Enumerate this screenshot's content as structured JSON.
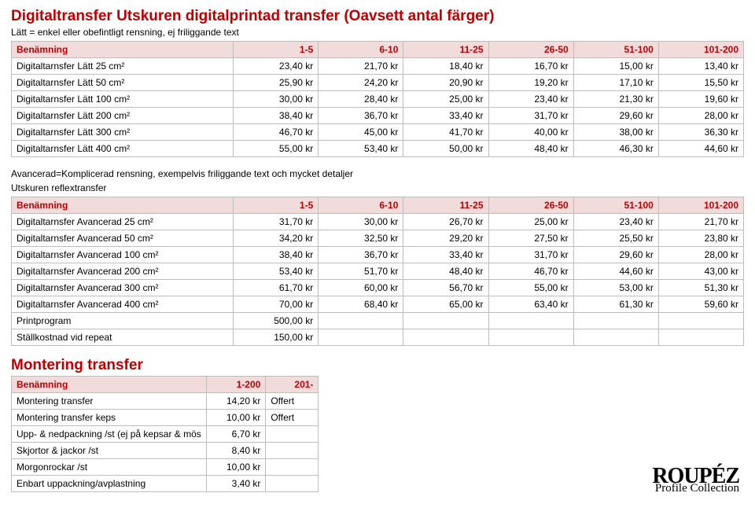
{
  "title": {
    "text": "Digitaltransfer Utskuren digitalprintad transfer (Oavsett antal färger)",
    "color": "#c00000",
    "fontsize": 19
  },
  "subtitle1": "Lätt = enkel eller obefintligt rensning, ej friliggande text",
  "table1": {
    "header_bg": "#f2dcdb",
    "header_color": "#c00000",
    "columns": [
      "Benämning",
      "1-5",
      "6-10",
      "11-25",
      "26-50",
      "51-100",
      "101-200"
    ],
    "rows": [
      [
        "Digitaltarnsfer Lätt 25 cm²",
        "23,40 kr",
        "21,70 kr",
        "18,40 kr",
        "16,70 kr",
        "15,00 kr",
        "13,40 kr"
      ],
      [
        "Digitaltarnsfer Lätt 50 cm²",
        "25,90 kr",
        "24,20 kr",
        "20,90 kr",
        "19,20 kr",
        "17,10 kr",
        "15,50 kr"
      ],
      [
        "Digitaltarnsfer Lätt 100 cm²",
        "30,00 kr",
        "28,40 kr",
        "25,00 kr",
        "23,40 kr",
        "21,30 kr",
        "19,60 kr"
      ],
      [
        "Digitaltarnsfer Lätt 200 cm²",
        "38,40 kr",
        "36,70 kr",
        "33,40 kr",
        "31,70 kr",
        "29,60 kr",
        "28,00 kr"
      ],
      [
        "Digitaltarnsfer Lätt 300 cm²",
        "46,70 kr",
        "45,00 kr",
        "41,70 kr",
        "40,00 kr",
        "38,00 kr",
        "36,30 kr"
      ],
      [
        "Digitaltarnsfer Lätt 400 cm²",
        "55,00 kr",
        "53,40 kr",
        "50,00 kr",
        "48,40 kr",
        "46,30 kr",
        "44,60 kr"
      ]
    ]
  },
  "subtitle2a": "Avancerad=Komplicerad rensning, exempelvis friliggande text och mycket detaljer",
  "subtitle2b": "Utskuren reflextransfer",
  "table2": {
    "columns": [
      "Benämning",
      "1-5",
      "6-10",
      "11-25",
      "26-50",
      "51-100",
      "101-200"
    ],
    "rows": [
      [
        "Digitaltarnsfer Avancerad 25 cm²",
        "31,70 kr",
        "30,00 kr",
        "26,70 kr",
        "25,00 kr",
        "23,40 kr",
        "21,70 kr"
      ],
      [
        "Digitaltarnsfer Avancerad 50 cm²",
        "34,20 kr",
        "32,50 kr",
        "29,20 kr",
        "27,50 kr",
        "25,50 kr",
        "23,80 kr"
      ],
      [
        "Digitaltarnsfer Avancerad 100 cm²",
        "38,40 kr",
        "36,70 kr",
        "33,40 kr",
        "31,70 kr",
        "29,60 kr",
        "28,00 kr"
      ],
      [
        "Digitaltarnsfer Avancerad 200 cm²",
        "53,40 kr",
        "51,70 kr",
        "48,40 kr",
        "46,70 kr",
        "44,60 kr",
        "43,00 kr"
      ],
      [
        "Digitaltarnsfer Avancerad 300 cm²",
        "61,70 kr",
        "60,00 kr",
        "56,70 kr",
        "55,00 kr",
        "53,00 kr",
        "51,30 kr"
      ],
      [
        "Digitaltarnsfer Avancerad 400 cm²",
        "70,00 kr",
        "68,40 kr",
        "65,00 kr",
        "63,40 kr",
        "61,30 kr",
        "59,60 kr"
      ],
      [
        "Printprogram",
        "500,00 kr",
        "",
        "",
        "",
        "",
        ""
      ],
      [
        "Ställkostnad vid repeat",
        "150,00 kr",
        "",
        "",
        "",
        "",
        ""
      ]
    ]
  },
  "sectionTitle": {
    "text": "Montering transfer",
    "color": "#c00000",
    "fontsize": 19
  },
  "table3": {
    "columns": [
      "Benämning",
      "1-200",
      "201-"
    ],
    "rows": [
      [
        "Montering transfer",
        "14,20 kr",
        "Offert"
      ],
      [
        "Montering transfer keps",
        "10,00 kr",
        "Offert"
      ],
      [
        "Upp- & nedpackning /st (ej på kepsar & mös",
        "6,70 kr",
        ""
      ],
      [
        "Skjortor & jackor /st",
        "8,40 kr",
        ""
      ],
      [
        "Morgonrockar /st",
        "10,00 kr",
        ""
      ],
      [
        "Enbart uppackning/avplastning",
        "3,40 kr",
        ""
      ]
    ]
  },
  "logo": {
    "main": "ROUPÉZ",
    "sub": "Profile Collection"
  },
  "layout": {
    "col_widths_pct": [
      30,
      11.5,
      11.5,
      11.5,
      11.5,
      11.5,
      11.5
    ]
  }
}
